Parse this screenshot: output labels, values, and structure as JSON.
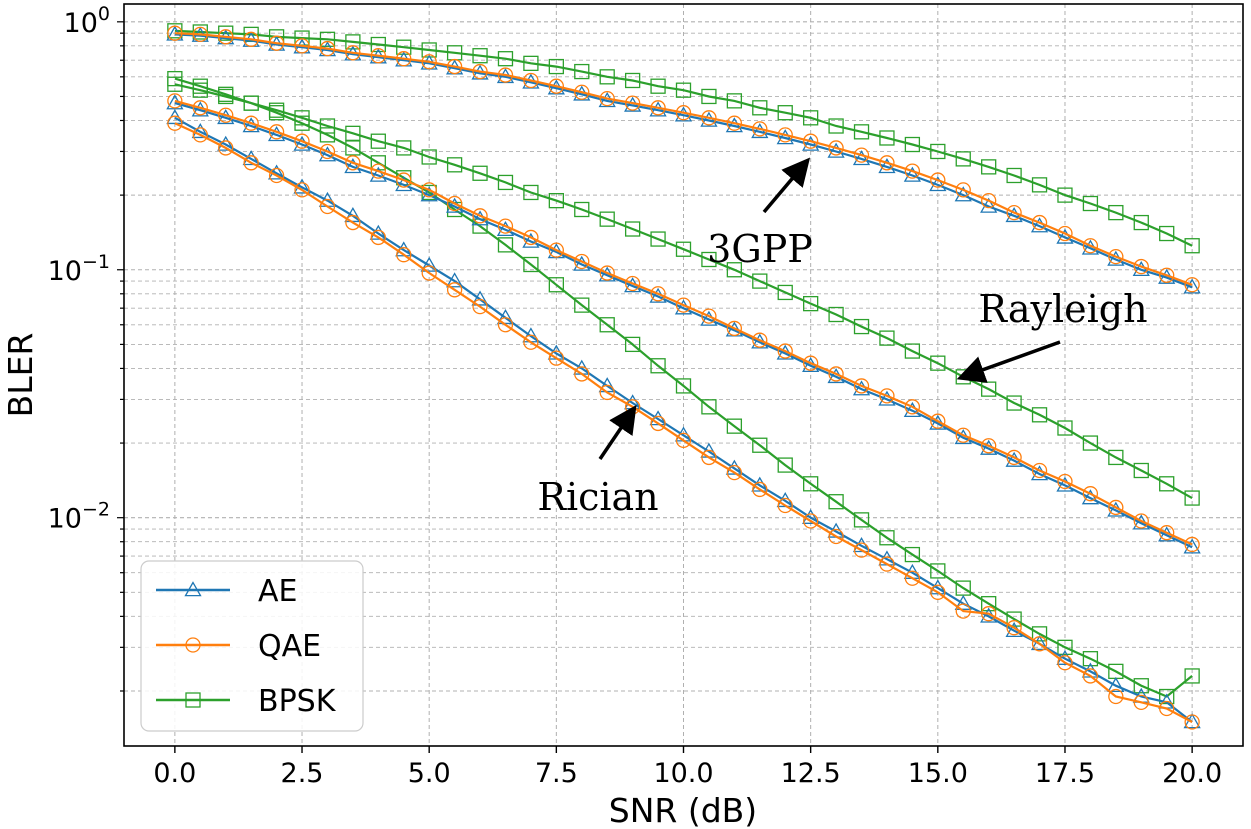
{
  "chart_data": {
    "type": "line",
    "title": "",
    "xlabel": "SNR (dB)",
    "ylabel": "BLER",
    "yscale": "log",
    "xlim": [
      -1.0,
      21.0
    ],
    "ylim": [
      0.0012,
      1.18
    ],
    "grid": true,
    "grid_minor": true,
    "xticks": [
      0.0,
      2.5,
      5.0,
      7.5,
      10.0,
      12.5,
      15.0,
      17.5,
      20.0
    ],
    "xtick_labels": [
      "0.0",
      "2.5",
      "5.0",
      "7.5",
      "10.0",
      "12.5",
      "15.0",
      "17.5",
      "20.0"
    ],
    "yticks": [
      {
        "value": 1,
        "base": "10",
        "exp": "0"
      },
      {
        "value": 0.1,
        "base": "10",
        "exp": "−1"
      },
      {
        "value": 0.01,
        "base": "10",
        "exp": "−2"
      }
    ],
    "x": [
      0,
      0.5,
      1,
      1.5,
      2,
      2.5,
      3,
      3.5,
      4,
      4.5,
      5,
      5.5,
      6,
      6.5,
      7,
      7.5,
      8,
      8.5,
      9,
      9.5,
      10,
      10.5,
      11,
      11.5,
      12,
      12.5,
      13,
      13.5,
      14,
      14.5,
      15,
      15.5,
      16,
      16.5,
      17,
      17.5,
      18,
      18.5,
      19,
      19.5,
      20
    ],
    "legend": {
      "position": "lower-left",
      "entries": [
        {
          "label": "AE",
          "color": "#1f77b4",
          "marker": "triangle"
        },
        {
          "label": "QAE",
          "color": "#ff7f0e",
          "marker": "circle"
        },
        {
          "label": "BPSK",
          "color": "#2ca02c",
          "marker": "square"
        }
      ]
    },
    "series": [
      {
        "name": "AE",
        "channel": "3GPP",
        "color": "#1f77b4",
        "marker": "triangle",
        "values": [
          0.89,
          0.88,
          0.86,
          0.84,
          0.81,
          0.79,
          0.77,
          0.74,
          0.72,
          0.7,
          0.68,
          0.65,
          0.62,
          0.6,
          0.57,
          0.54,
          0.51,
          0.48,
          0.46,
          0.44,
          0.42,
          0.4,
          0.38,
          0.36,
          0.34,
          0.32,
          0.3,
          0.28,
          0.26,
          0.24,
          0.22,
          0.2,
          0.18,
          0.165,
          0.15,
          0.135,
          0.122,
          0.11,
          0.1,
          0.093,
          0.085
        ]
      },
      {
        "name": "QAE",
        "channel": "3GPP",
        "color": "#ff7f0e",
        "marker": "circle",
        "values": [
          0.9,
          0.89,
          0.87,
          0.85,
          0.82,
          0.8,
          0.78,
          0.75,
          0.73,
          0.71,
          0.69,
          0.66,
          0.63,
          0.61,
          0.58,
          0.55,
          0.52,
          0.49,
          0.47,
          0.45,
          0.43,
          0.41,
          0.39,
          0.37,
          0.35,
          0.33,
          0.31,
          0.29,
          0.27,
          0.25,
          0.23,
          0.21,
          0.19,
          0.17,
          0.155,
          0.14,
          0.125,
          0.113,
          0.103,
          0.095,
          0.087
        ]
      },
      {
        "name": "BPSK",
        "channel": "3GPP",
        "color": "#2ca02c",
        "marker": "square",
        "values": [
          0.92,
          0.91,
          0.9,
          0.89,
          0.87,
          0.86,
          0.85,
          0.83,
          0.81,
          0.79,
          0.77,
          0.75,
          0.73,
          0.71,
          0.68,
          0.66,
          0.63,
          0.6,
          0.58,
          0.55,
          0.53,
          0.5,
          0.48,
          0.45,
          0.43,
          0.41,
          0.38,
          0.36,
          0.34,
          0.32,
          0.3,
          0.28,
          0.26,
          0.24,
          0.22,
          0.2,
          0.185,
          0.17,
          0.155,
          0.14,
          0.125
        ]
      },
      {
        "name": "AE",
        "channel": "Rayleigh",
        "color": "#1f77b4",
        "marker": "triangle",
        "values": [
          0.47,
          0.44,
          0.41,
          0.38,
          0.35,
          0.32,
          0.29,
          0.26,
          0.24,
          0.22,
          0.2,
          0.18,
          0.16,
          0.145,
          0.13,
          0.118,
          0.105,
          0.095,
          0.086,
          0.078,
          0.07,
          0.063,
          0.057,
          0.051,
          0.046,
          0.041,
          0.037,
          0.033,
          0.03,
          0.027,
          0.024,
          0.021,
          0.019,
          0.017,
          0.015,
          0.0135,
          0.012,
          0.0107,
          0.0095,
          0.0085,
          0.0076
        ]
      },
      {
        "name": "QAE",
        "channel": "Rayleigh",
        "color": "#ff7f0e",
        "marker": "circle",
        "values": [
          0.48,
          0.45,
          0.42,
          0.39,
          0.36,
          0.33,
          0.3,
          0.27,
          0.25,
          0.23,
          0.21,
          0.185,
          0.165,
          0.15,
          0.135,
          0.12,
          0.108,
          0.097,
          0.088,
          0.08,
          0.072,
          0.065,
          0.058,
          0.052,
          0.047,
          0.042,
          0.038,
          0.034,
          0.031,
          0.028,
          0.0245,
          0.0215,
          0.0195,
          0.0175,
          0.0155,
          0.014,
          0.0125,
          0.011,
          0.0097,
          0.0087,
          0.0078
        ]
      },
      {
        "name": "BPSK",
        "channel": "Rayleigh",
        "color": "#2ca02c",
        "marker": "square",
        "values": [
          0.56,
          0.53,
          0.5,
          0.47,
          0.44,
          0.41,
          0.38,
          0.355,
          0.33,
          0.31,
          0.285,
          0.265,
          0.245,
          0.225,
          0.205,
          0.19,
          0.175,
          0.16,
          0.146,
          0.133,
          0.121,
          0.11,
          0.1,
          0.09,
          0.081,
          0.073,
          0.066,
          0.059,
          0.053,
          0.047,
          0.042,
          0.037,
          0.033,
          0.029,
          0.026,
          0.023,
          0.02,
          0.0175,
          0.0155,
          0.0137,
          0.012
        ]
      },
      {
        "name": "AE",
        "channel": "Rician",
        "color": "#1f77b4",
        "marker": "triangle",
        "values": [
          0.41,
          0.36,
          0.32,
          0.28,
          0.245,
          0.215,
          0.19,
          0.165,
          0.14,
          0.12,
          0.104,
          0.09,
          0.076,
          0.064,
          0.054,
          0.046,
          0.04,
          0.034,
          0.029,
          0.025,
          0.0215,
          0.0185,
          0.0158,
          0.0135,
          0.0117,
          0.01,
          0.0088,
          0.0077,
          0.0068,
          0.006,
          0.0052,
          0.0045,
          0.004,
          0.0035,
          0.0031,
          0.0027,
          0.0024,
          0.0021,
          0.0019,
          0.0018,
          0.0015
        ]
      },
      {
        "name": "QAE",
        "channel": "Rician",
        "color": "#ff7f0e",
        "marker": "circle",
        "values": [
          0.39,
          0.35,
          0.31,
          0.27,
          0.24,
          0.21,
          0.18,
          0.155,
          0.135,
          0.115,
          0.097,
          0.083,
          0.071,
          0.06,
          0.051,
          0.044,
          0.038,
          0.032,
          0.028,
          0.024,
          0.0205,
          0.0175,
          0.0152,
          0.013,
          0.0112,
          0.0097,
          0.0084,
          0.0074,
          0.0065,
          0.0057,
          0.005,
          0.0042,
          0.0041,
          0.0036,
          0.0031,
          0.0026,
          0.0023,
          0.0019,
          0.0018,
          0.0017,
          0.0015
        ]
      },
      {
        "name": "BPSK",
        "channel": "Rician",
        "color": "#2ca02c",
        "marker": "square",
        "values": [
          0.59,
          0.55,
          0.51,
          0.47,
          0.43,
          0.39,
          0.35,
          0.31,
          0.27,
          0.235,
          0.205,
          0.175,
          0.15,
          0.126,
          0.105,
          0.087,
          0.072,
          0.06,
          0.05,
          0.041,
          0.034,
          0.028,
          0.0234,
          0.0196,
          0.0163,
          0.0137,
          0.0116,
          0.0098,
          0.0083,
          0.0071,
          0.0061,
          0.0052,
          0.0045,
          0.0039,
          0.0034,
          0.003,
          0.0027,
          0.0024,
          0.0021,
          0.0019,
          0.0023
        ]
      }
    ],
    "annotations": [
      {
        "text": "3GPP",
        "arrow_to": {
          "x": 12.4,
          "y": 0.27
        }
      },
      {
        "text": "Rayleigh",
        "arrow_to": {
          "x": 15.5,
          "y": 0.037
        }
      },
      {
        "text": "Rician",
        "arrow_to": {
          "x": 9.0,
          "y": 0.027
        }
      }
    ]
  }
}
